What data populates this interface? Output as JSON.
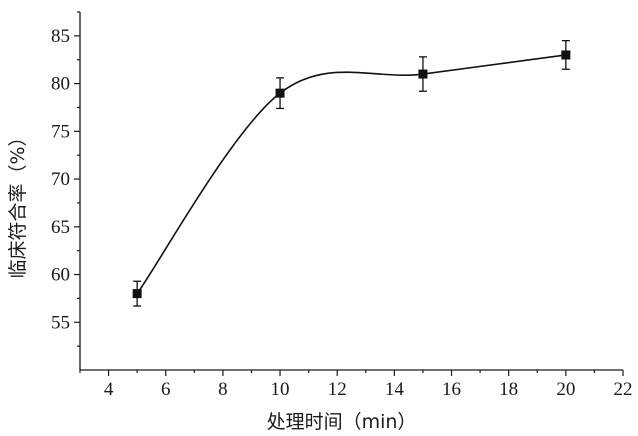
{
  "chart_data": {
    "type": "line",
    "xlabel": "处理时间（min）",
    "ylabel": "临床符合率（%）",
    "xlim": [
      3,
      22
    ],
    "ylim": [
      50,
      87.5
    ],
    "xticks": [
      4,
      6,
      8,
      10,
      12,
      14,
      16,
      18,
      20,
      22
    ],
    "yticks": [
      55,
      60,
      65,
      70,
      75,
      80,
      85
    ],
    "grid": false,
    "legend": "none",
    "series": [
      {
        "x": [
          5,
          10,
          15,
          20
        ],
        "y": [
          58,
          79,
          81,
          83
        ],
        "yerr": [
          1.3,
          1.6,
          1.8,
          1.5
        ],
        "marker": "square",
        "color": "#111111"
      }
    ]
  }
}
